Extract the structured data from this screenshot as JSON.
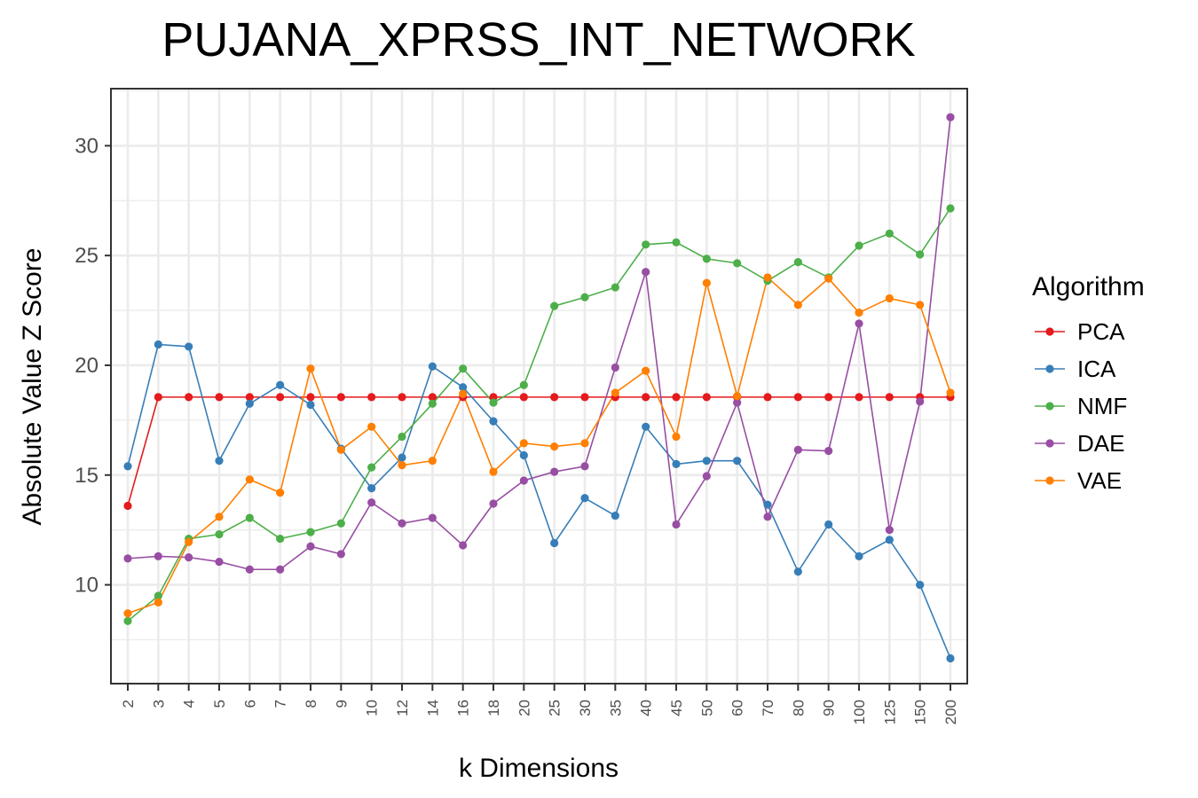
{
  "chart_data": {
    "type": "line",
    "title": "PUJANA_XPRSS_INT_NETWORK",
    "xlabel": "k Dimensions",
    "ylabel": "Absolute Value Z Score",
    "categories": [
      "2",
      "3",
      "4",
      "5",
      "6",
      "7",
      "8",
      "9",
      "10",
      "12",
      "14",
      "16",
      "18",
      "20",
      "25",
      "30",
      "35",
      "40",
      "45",
      "50",
      "60",
      "70",
      "80",
      "90",
      "100",
      "125",
      "150",
      "200"
    ],
    "ylim": [
      5.5,
      32.6
    ],
    "yticks": [
      10,
      15,
      20,
      25,
      30
    ],
    "grid": true,
    "legend": {
      "title": "Algorithm",
      "placement": "right"
    },
    "series": [
      {
        "name": "PCA",
        "color": "#e41a1c",
        "values": [
          13.6,
          18.55,
          18.55,
          18.55,
          18.55,
          18.55,
          18.55,
          18.55,
          18.55,
          18.55,
          18.55,
          18.55,
          18.55,
          18.55,
          18.55,
          18.55,
          18.55,
          18.55,
          18.55,
          18.55,
          18.55,
          18.55,
          18.55,
          18.55,
          18.55,
          18.55,
          18.55,
          18.55
        ]
      },
      {
        "name": "ICA",
        "color": "#377eb8",
        "values": [
          15.4,
          20.95,
          20.85,
          15.65,
          18.25,
          19.1,
          18.2,
          16.2,
          14.4,
          15.8,
          19.95,
          19.0,
          17.45,
          15.9,
          11.9,
          13.95,
          13.15,
          17.2,
          15.5,
          15.65,
          15.65,
          13.65,
          10.6,
          12.75,
          11.3,
          12.05,
          10.0,
          6.65
        ]
      },
      {
        "name": "NMF",
        "color": "#4daf4a",
        "values": [
          8.35,
          9.5,
          12.1,
          12.3,
          13.05,
          12.1,
          12.4,
          12.8,
          15.35,
          16.75,
          18.25,
          19.85,
          18.3,
          19.1,
          22.7,
          23.1,
          23.55,
          25.5,
          25.6,
          24.85,
          24.65,
          23.85,
          24.7,
          24.0,
          25.45,
          26.0,
          25.05,
          27.15
        ]
      },
      {
        "name": "DAE",
        "color": "#984ea3",
        "values": [
          11.2,
          11.3,
          11.25,
          11.05,
          10.7,
          10.7,
          11.75,
          11.4,
          13.75,
          12.8,
          13.05,
          11.8,
          13.7,
          14.75,
          15.15,
          15.4,
          19.9,
          24.25,
          12.75,
          14.95,
          18.3,
          13.1,
          16.15,
          16.1,
          21.9,
          12.5,
          18.35,
          31.3
        ]
      },
      {
        "name": "VAE",
        "color": "#ff7f00",
        "values": [
          8.7,
          9.2,
          11.95,
          13.1,
          14.8,
          14.2,
          19.85,
          16.15,
          17.2,
          15.45,
          15.65,
          18.7,
          15.15,
          16.45,
          16.3,
          16.45,
          18.75,
          19.75,
          16.75,
          23.75,
          18.6,
          24.0,
          22.75,
          23.95,
          22.4,
          23.05,
          22.75,
          18.75
        ]
      }
    ]
  }
}
